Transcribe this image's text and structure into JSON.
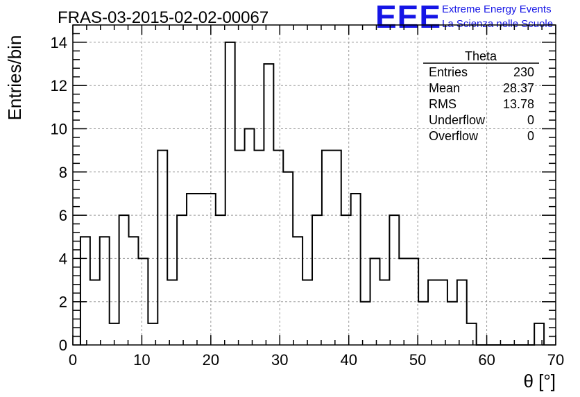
{
  "title": "FRAS-03-2015-02-02-00067",
  "logo": {
    "mark": "EEE",
    "line1": "Extreme Energy Events",
    "line2": "La Scienza nelle Scuole",
    "color": "#1515e6"
  },
  "stats": {
    "name": "Theta",
    "rows": [
      {
        "label": "Entries",
        "value": "230"
      },
      {
        "label": "Mean",
        "value": "28.37"
      },
      {
        "label": "RMS",
        "value": "13.78"
      },
      {
        "label": "Underflow",
        "value": "0"
      },
      {
        "label": "Overflow",
        "value": "0"
      }
    ]
  },
  "chart_data": {
    "type": "bar",
    "title": "FRAS-03-2015-02-02-00067",
    "xlabel": "θ [°]",
    "ylabel": "Entries/bin",
    "xlim": [
      0,
      70
    ],
    "ylim": [
      0,
      14.8
    ],
    "xticks": [
      0,
      10,
      20,
      30,
      40,
      50,
      60,
      70
    ],
    "yticks": [
      0,
      2,
      4,
      6,
      8,
      10,
      12,
      14
    ],
    "grid": true,
    "bin_width": 1.4,
    "bin_edges_start": 1.1,
    "values": [
      5,
      3,
      5,
      1,
      6,
      5,
      4,
      1,
      9,
      3,
      6,
      7,
      7,
      7,
      6,
      14,
      9,
      10,
      9,
      13,
      9,
      8,
      5,
      3,
      6,
      9,
      9,
      6,
      7,
      2,
      4,
      3,
      6,
      4,
      4,
      2,
      3,
      3,
      2,
      3,
      1,
      0,
      0,
      0,
      0,
      0,
      0,
      1
    ],
    "line_color": "#000000"
  }
}
